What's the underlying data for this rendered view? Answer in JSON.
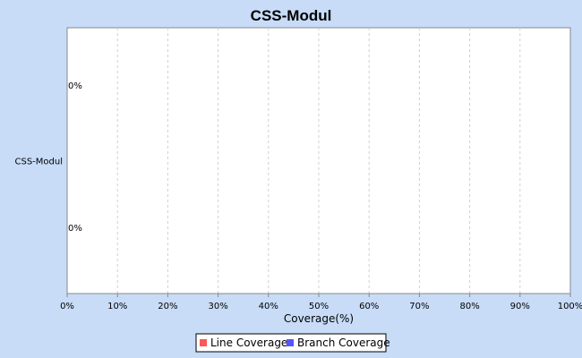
{
  "chart_data": {
    "type": "bar",
    "orientation": "horizontal",
    "title": "CSS-Modul",
    "categories": [
      "CSS-Modul"
    ],
    "series": [
      {
        "name": "Line Coverage",
        "values": [
          0
        ],
        "color": "#ff5555"
      },
      {
        "name": "Branch Coverage",
        "values": [
          0
        ],
        "color": "#5555ff"
      }
    ],
    "data_labels": [
      "0%",
      "0%"
    ],
    "xlabel": "Coverage(%)",
    "ylabel": "",
    "xlim": [
      0,
      100
    ],
    "x_ticks": [
      "0%",
      "10%",
      "20%",
      "30%",
      "40%",
      "50%",
      "60%",
      "70%",
      "80%",
      "90%",
      "100%"
    ],
    "grid": true,
    "legend_position": "bottom"
  }
}
